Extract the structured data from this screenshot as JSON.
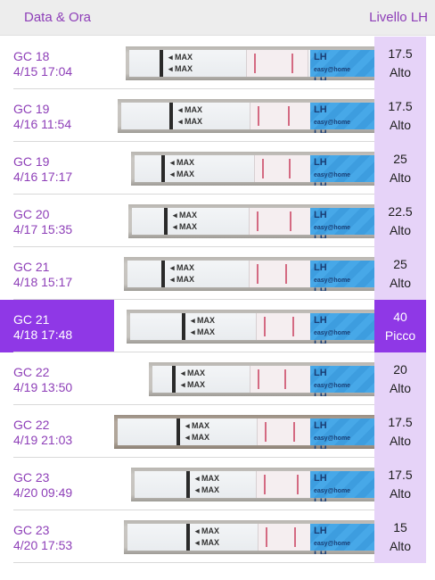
{
  "header": {
    "date_col": "Data & Ora",
    "lh_col": "Livello LH"
  },
  "strip_text": {
    "max": "MAX",
    "lh": "LH",
    "brand": "easy@home"
  },
  "rows": [
    {
      "day": "GC 18",
      "datetime": "4/15 17:04",
      "value": "17.5",
      "level": "Alto",
      "selected": false
    },
    {
      "day": "GC 19",
      "datetime": "4/16 11:54",
      "value": "17.5",
      "level": "Alto",
      "selected": false
    },
    {
      "day": "GC 19",
      "datetime": "4/16 17:17",
      "value": "25",
      "level": "Alto",
      "selected": false
    },
    {
      "day": "GC 20",
      "datetime": "4/17 15:35",
      "value": "22.5",
      "level": "Alto",
      "selected": false
    },
    {
      "day": "GC 21",
      "datetime": "4/18 15:17",
      "value": "25",
      "level": "Alto",
      "selected": false
    },
    {
      "day": "GC 21",
      "datetime": "4/18 17:48",
      "value": "40",
      "level": "Picco",
      "selected": true
    },
    {
      "day": "GC 22",
      "datetime": "4/19 13:50",
      "value": "20",
      "level": "Alto",
      "selected": false
    },
    {
      "day": "GC 22",
      "datetime": "4/19 21:03",
      "value": "17.5",
      "level": "Alto",
      "selected": false
    },
    {
      "day": "GC 23",
      "datetime": "4/20 09:49",
      "value": "17.5",
      "level": "Alto",
      "selected": false
    },
    {
      "day": "GC 23",
      "datetime": "4/20 17:53",
      "value": "15",
      "level": "Alto",
      "selected": false
    }
  ],
  "colors": {
    "accent": "#8f38e6",
    "accent_text": "#8e3fb8",
    "lh_cell": "#e6d3f8"
  }
}
